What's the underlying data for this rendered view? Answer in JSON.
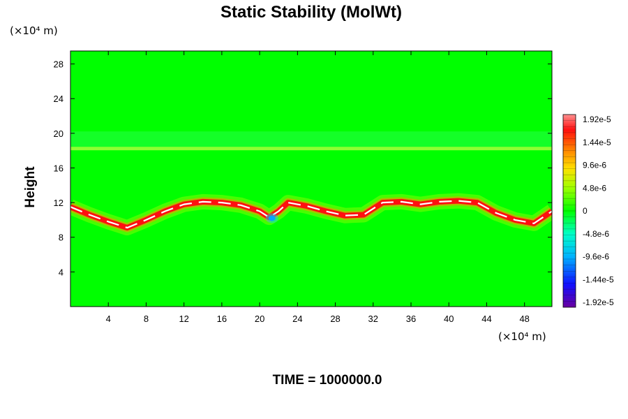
{
  "chart_data": {
    "type": "heatmap",
    "title": "Static Stability (MolWt)",
    "ylabel": "Height",
    "xlabel": "",
    "x_unit": "(×10⁴ m)",
    "y_unit": "(×10⁴ m)",
    "xlim": [
      0,
      50.9
    ],
    "ylim": [
      0,
      29.5
    ],
    "x_ticks": [
      "4",
      "8",
      "12",
      "16",
      "20",
      "24",
      "28",
      "32",
      "36",
      "40",
      "44",
      "48"
    ],
    "y_ticks": [
      "4",
      "8",
      "12",
      "16",
      "20",
      "24",
      "28"
    ],
    "colorbar": {
      "labels": [
        "1.92e-5",
        "1.44e-5",
        "9.6e-6",
        "4.8e-6",
        "0",
        "-4.8e-6",
        "-9.6e-6",
        "-1.44e-5",
        "-1.92e-5"
      ],
      "min": -1.92e-05,
      "max": 1.92e-05
    },
    "background_value": 0,
    "ridge_line": {
      "description_values": "approximate x (×10^4 m) and height (×10^4 m) of the strong positive stability band",
      "points": [
        [
          0,
          11.5
        ],
        [
          2,
          10.6
        ],
        [
          4,
          9.8
        ],
        [
          6,
          9.1
        ],
        [
          8,
          10.0
        ],
        [
          10,
          11.0
        ],
        [
          12,
          11.8
        ],
        [
          14,
          12.1
        ],
        [
          16,
          12.0
        ],
        [
          18,
          11.7
        ],
        [
          20,
          11.0
        ],
        [
          21,
          10.3
        ],
        [
          22,
          11.0
        ],
        [
          23,
          12.0
        ],
        [
          25,
          11.6
        ],
        [
          27,
          11.0
        ],
        [
          29,
          10.5
        ],
        [
          31,
          10.6
        ],
        [
          33,
          12.0
        ],
        [
          35,
          12.1
        ],
        [
          37,
          11.8
        ],
        [
          39,
          12.1
        ],
        [
          41,
          12.2
        ],
        [
          43,
          12.0
        ],
        [
          45,
          10.8
        ],
        [
          47,
          10.0
        ],
        [
          49,
          9.6
        ],
        [
          50.9,
          11.0
        ]
      ],
      "value": 1.92e-05
    },
    "tropopause_band": {
      "height": 18.2,
      "value": 4.8e-06
    }
  },
  "footer": {
    "time_label": "TIME = 1000000.0"
  },
  "colors": {
    "background_field": "#00ff00",
    "positive_peak": "#ff0000",
    "peak_core": "#ffffff",
    "negative": "#00c8ff"
  }
}
